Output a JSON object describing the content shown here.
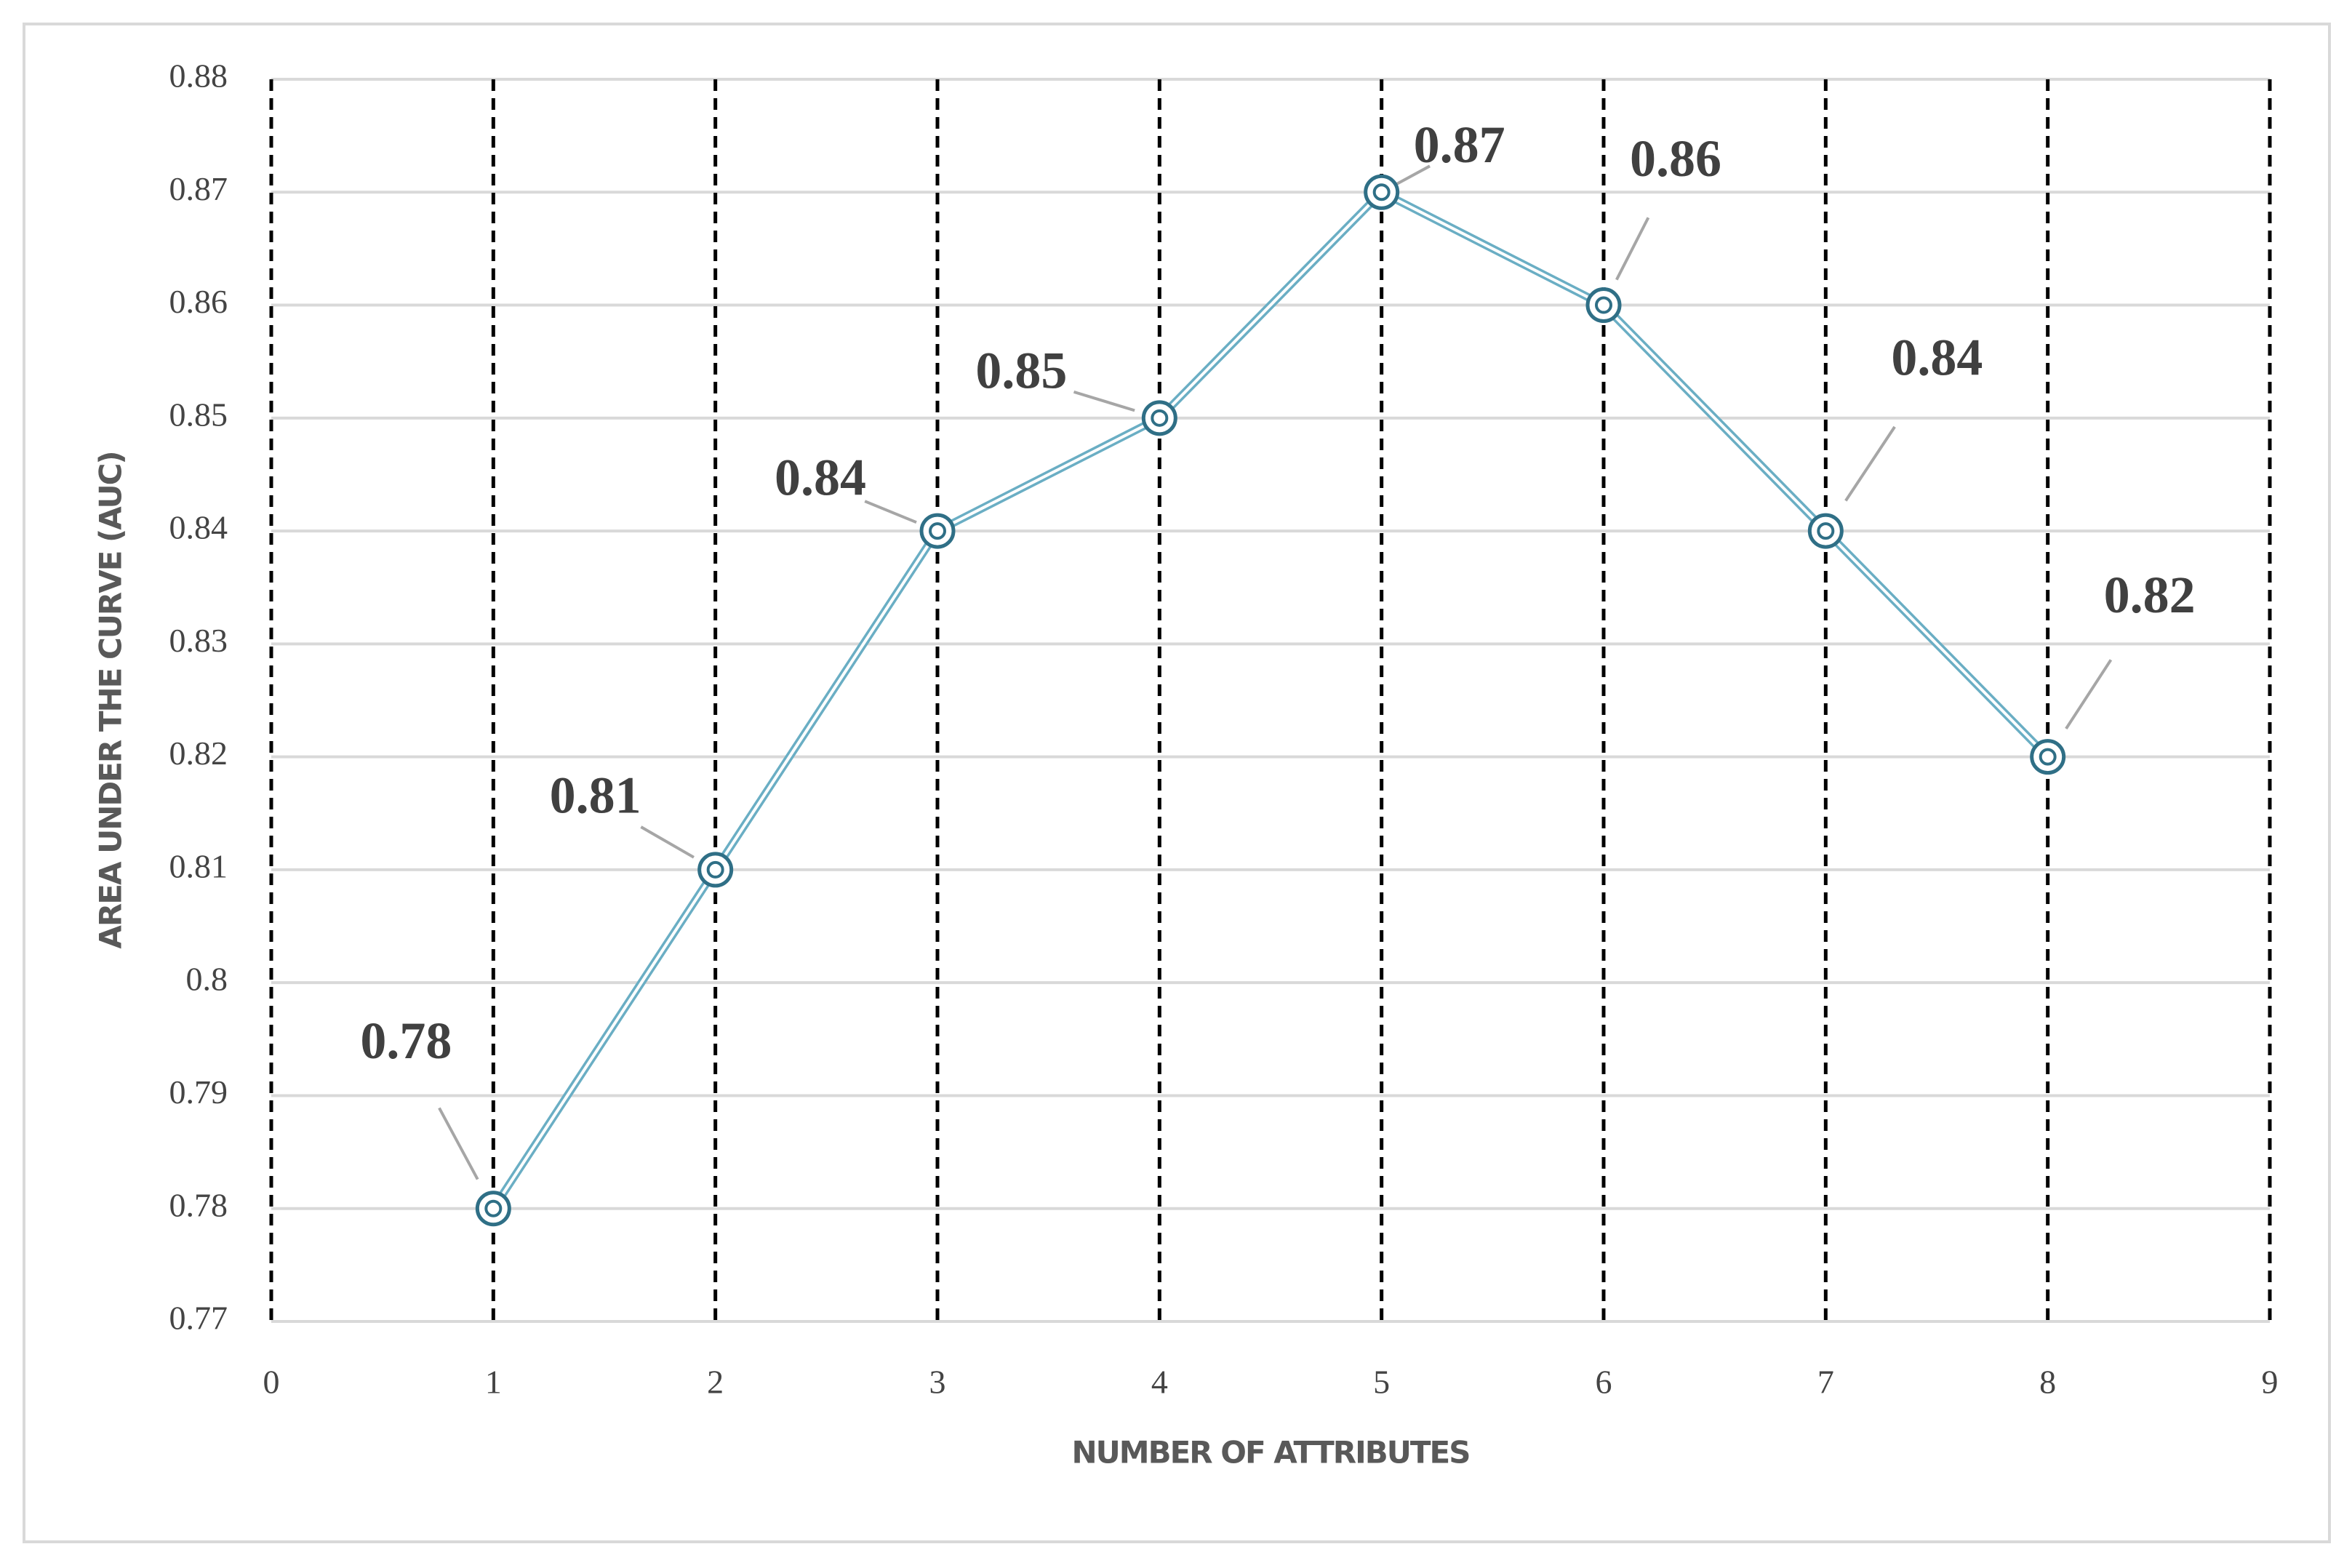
{
  "chart_data": {
    "type": "line",
    "x_label": "NUMBER OF ATTRIBUTES",
    "y_label": "AREA UNDER THE CURVE (AUC)",
    "x": [
      1,
      2,
      3,
      4,
      5,
      6,
      7,
      8
    ],
    "values": [
      0.78,
      0.81,
      0.84,
      0.85,
      0.87,
      0.86,
      0.84,
      0.82
    ],
    "color": "#6aaec4",
    "xlim": [
      0,
      9
    ],
    "xticks": [
      0,
      1,
      2,
      3,
      4,
      5,
      6,
      7,
      8,
      9
    ],
    "ylim": [
      0.77,
      0.88
    ],
    "yticks": [
      0.77,
      0.78,
      0.79,
      0.8,
      0.81,
      0.82,
      0.83,
      0.84,
      0.85,
      0.86,
      0.87,
      0.88
    ],
    "grid": true
  }
}
